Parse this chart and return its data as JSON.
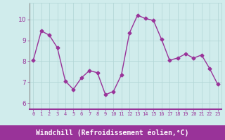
{
  "x": [
    0,
    1,
    2,
    3,
    4,
    5,
    6,
    7,
    8,
    9,
    10,
    11,
    12,
    13,
    14,
    15,
    16,
    17,
    18,
    19,
    20,
    21,
    22,
    23
  ],
  "y": [
    8.05,
    9.45,
    9.25,
    8.65,
    7.05,
    6.65,
    7.2,
    7.55,
    7.45,
    6.4,
    6.55,
    7.35,
    9.35,
    10.2,
    10.05,
    9.95,
    9.05,
    8.05,
    8.15,
    8.35,
    8.15,
    8.3,
    7.65,
    6.9
  ],
  "line_color": "#993399",
  "marker": "D",
  "markersize": 2.5,
  "linewidth": 1.0,
  "bg_color": "#d0ecec",
  "grid_color": "#b0d4d4",
  "xlabel": "Windchill (Refroidissement éolien,°C)",
  "xlabel_fontsize": 7.0,
  "xtick_labels": [
    "0",
    "1",
    "2",
    "3",
    "4",
    "5",
    "6",
    "7",
    "8",
    "9",
    "10",
    "11",
    "12",
    "13",
    "14",
    "15",
    "16",
    "17",
    "18",
    "19",
    "20",
    "21",
    "22",
    "23"
  ],
  "ytick_values": [
    6,
    7,
    8,
    9,
    10
  ],
  "ylim": [
    5.7,
    10.8
  ],
  "xlim": [
    -0.5,
    23.5
  ],
  "tick_color": "#993399",
  "spine_color": "#993399",
  "xlabel_bar_color": "#993399",
  "xlabel_text_color": "#993399"
}
